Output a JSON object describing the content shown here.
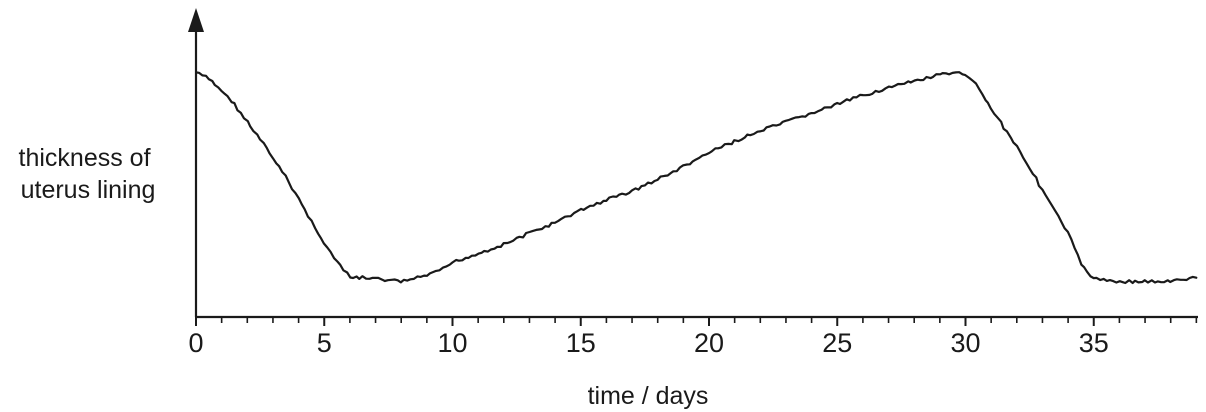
{
  "chart_data": {
    "type": "line",
    "xlabel": "time / days",
    "ylabel_lines": [
      "thickness of",
      "uterus lining"
    ],
    "xlim": [
      0,
      39.3
    ],
    "ylim": [
      0,
      10
    ],
    "x_ticks": [
      0,
      5,
      10,
      15,
      20,
      25,
      30,
      35
    ],
    "minor_tick_step": 1,
    "y_tick_labels": "none",
    "grid": false,
    "legend": "none",
    "series": [
      {
        "x": [
          0,
          0.5,
          1,
          1.5,
          2,
          2.5,
          3,
          3.5,
          4,
          4.5,
          5,
          5.5,
          6,
          6.5,
          7,
          7.5,
          8,
          8.5,
          9,
          9.5,
          10,
          11,
          12,
          13,
          14,
          15,
          16,
          17,
          18,
          19,
          20,
          21,
          22,
          23,
          24,
          25,
          26,
          27,
          28,
          29,
          29.5,
          30,
          30.3,
          31,
          32,
          33,
          34,
          34.5,
          35,
          35.5,
          36,
          37,
          38,
          39
        ],
        "y": [
          9.2,
          8.95,
          8.5,
          7.95,
          7.25,
          6.55,
          5.85,
          5.1,
          4.25,
          3.35,
          2.5,
          1.75,
          1.15,
          1.15,
          1.1,
          1.05,
          1.0,
          1.1,
          1.25,
          1.4,
          1.75,
          2.1,
          2.45,
          2.9,
          3.3,
          3.8,
          4.2,
          4.55,
          5.0,
          5.5,
          6.05,
          6.5,
          6.9,
          7.25,
          7.6,
          7.95,
          8.3,
          8.6,
          8.85,
          9.1,
          9.15,
          9.15,
          8.9,
          7.8,
          6.3,
          4.6,
          2.9,
          1.7,
          1.1,
          1.05,
          1.0,
          1.0,
          1.0,
          1.15
        ]
      }
    ]
  }
}
